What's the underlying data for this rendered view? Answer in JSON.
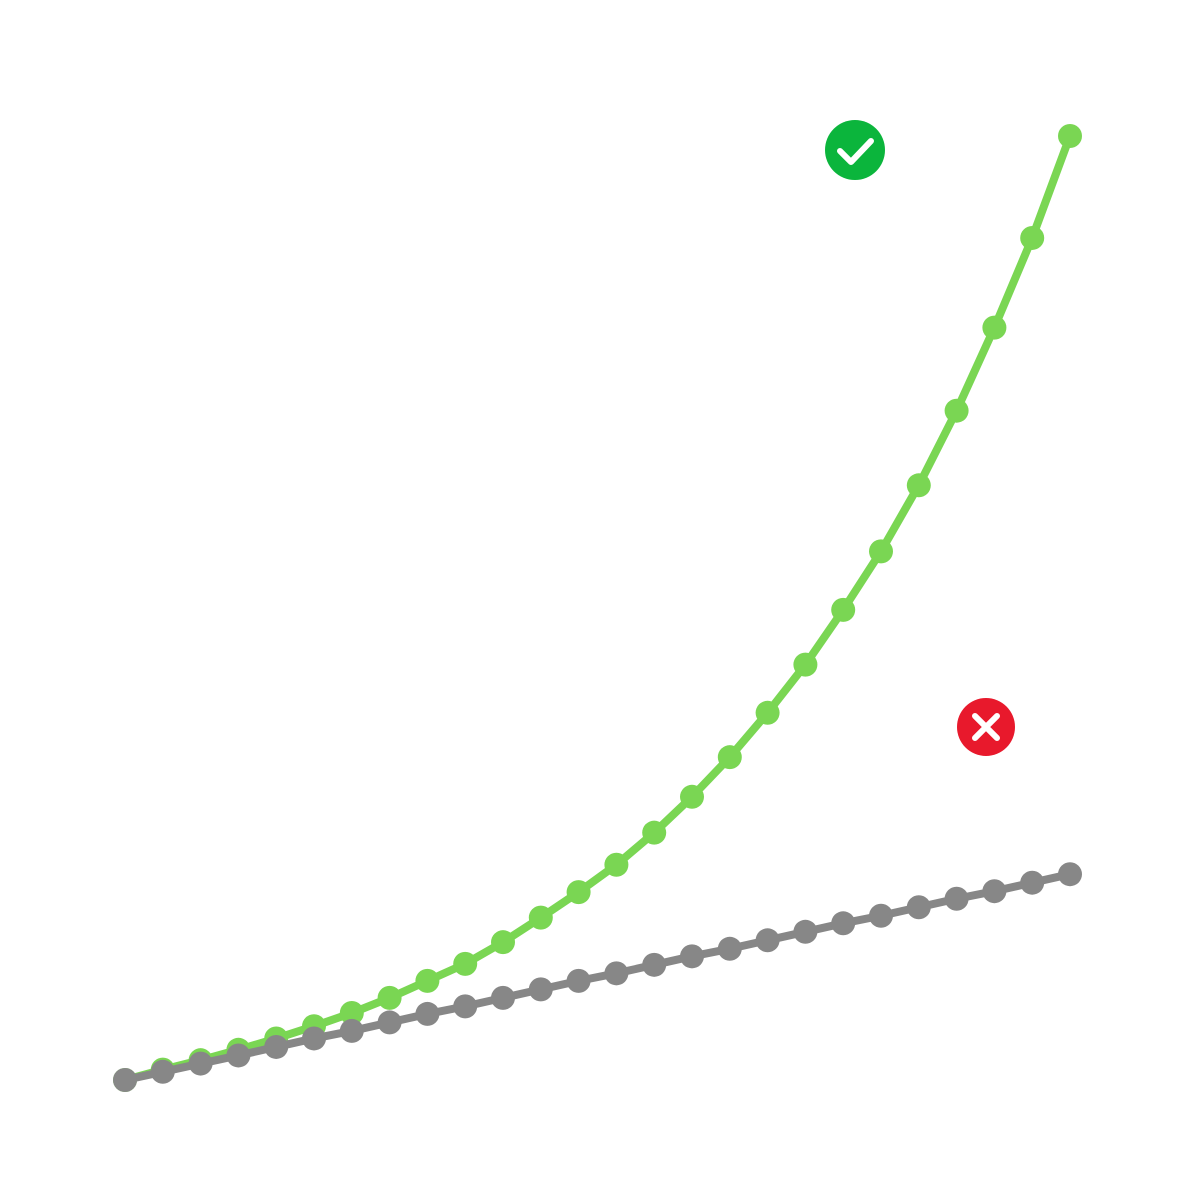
{
  "chart_data": {
    "type": "line",
    "categories": [
      null,
      null,
      null,
      null,
      null,
      null,
      null,
      null,
      null,
      null,
      null,
      null,
      null,
      null,
      null,
      null,
      null,
      null,
      null,
      null,
      null,
      null,
      null,
      null,
      null,
      null
    ],
    "series": [
      {
        "color": "#7ad653",
        "values": [
          0,
          1.1,
          2.1,
          3.2,
          4.4,
          5.7,
          7.1,
          8.7,
          10.5,
          12.3,
          14.6,
          17.2,
          19.9,
          22.8,
          26.2,
          30.0,
          34.2,
          38.9,
          44.0,
          49.8,
          56.0,
          63.0,
          70.9,
          79.7,
          89.2,
          100
        ]
      },
      {
        "color": "#878787",
        "values": [
          0,
          0.87,
          1.74,
          2.6,
          3.5,
          4.4,
          5.2,
          6.1,
          7.0,
          7.8,
          8.7,
          9.6,
          10.5,
          11.3,
          12.2,
          13.1,
          13.9,
          14.8,
          15.7,
          16.6,
          17.4,
          18.3,
          19.2,
          20.0,
          20.9,
          21.8
        ]
      }
    ],
    "ylim": [
      0,
      100
    ],
    "grid": false
  }
}
